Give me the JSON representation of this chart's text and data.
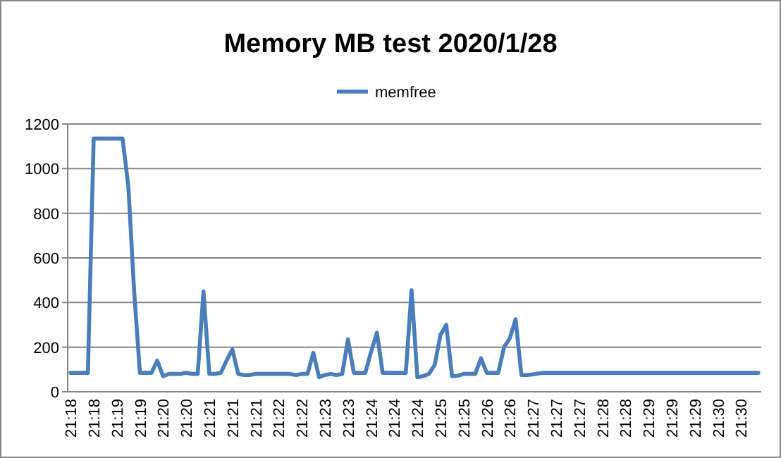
{
  "chart_data": {
    "type": "line",
    "title": "Memory MB test  2020/1/28",
    "categories": [
      "21:18",
      null,
      null,
      null,
      "21:18",
      null,
      null,
      null,
      "21:19",
      null,
      null,
      null,
      "21:19",
      null,
      null,
      null,
      "21:20",
      null,
      null,
      null,
      "21:20",
      null,
      null,
      null,
      "21:21",
      null,
      null,
      null,
      "21:21",
      null,
      null,
      null,
      "21:21",
      null,
      null,
      null,
      "21:22",
      null,
      null,
      null,
      "21:22",
      null,
      null,
      null,
      "21:23",
      null,
      null,
      null,
      "21:23",
      null,
      null,
      null,
      "21:24",
      null,
      null,
      null,
      "21:24",
      null,
      null,
      null,
      "21:24",
      null,
      null,
      null,
      "21:25",
      null,
      null,
      null,
      "21:25",
      null,
      null,
      null,
      "21:26",
      null,
      null,
      null,
      "21:26",
      null,
      null,
      null,
      "21:27",
      null,
      null,
      null,
      "21:27",
      null,
      null,
      null,
      "21:27",
      null,
      null,
      null,
      "21:28",
      null,
      null,
      null,
      "21:28",
      null,
      null,
      null,
      "21:29",
      null,
      null,
      null,
      "21:29",
      null,
      null,
      null,
      "21:29",
      null,
      null,
      null,
      "21:30",
      null,
      null,
      null,
      "21:30",
      null,
      null,
      null
    ],
    "series": [
      {
        "name": "memfree",
        "color": "#4a7ebb",
        "values": [
          85,
          85,
          85,
          85,
          1135,
          1135,
          1135,
          1135,
          1135,
          1135,
          920,
          450,
          85,
          85,
          85,
          140,
          70,
          80,
          80,
          80,
          85,
          80,
          80,
          450,
          80,
          80,
          85,
          140,
          190,
          80,
          75,
          75,
          80,
          80,
          80,
          80,
          80,
          80,
          80,
          75,
          80,
          80,
          175,
          65,
          75,
          80,
          75,
          80,
          235,
          85,
          85,
          85,
          180,
          265,
          85,
          85,
          85,
          85,
          85,
          455,
          65,
          70,
          80,
          120,
          255,
          300,
          70,
          72,
          80,
          80,
          80,
          150,
          85,
          85,
          85,
          200,
          240,
          325,
          75,
          75,
          78,
          82,
          85,
          85,
          85,
          85,
          85,
          85,
          85,
          85,
          85,
          85,
          85,
          85,
          85,
          85,
          85,
          85,
          85,
          85,
          85,
          85,
          85,
          85,
          85,
          85,
          85,
          85,
          85,
          85,
          85,
          85,
          85,
          85,
          85,
          85,
          85,
          85,
          85,
          85
        ]
      }
    ],
    "ylim": [
      0,
      1200
    ],
    "yticks": [
      0,
      200,
      400,
      600,
      800,
      1000,
      1200
    ],
    "grid": "y",
    "legend": "top",
    "marker": "none",
    "line_style": "solid"
  }
}
